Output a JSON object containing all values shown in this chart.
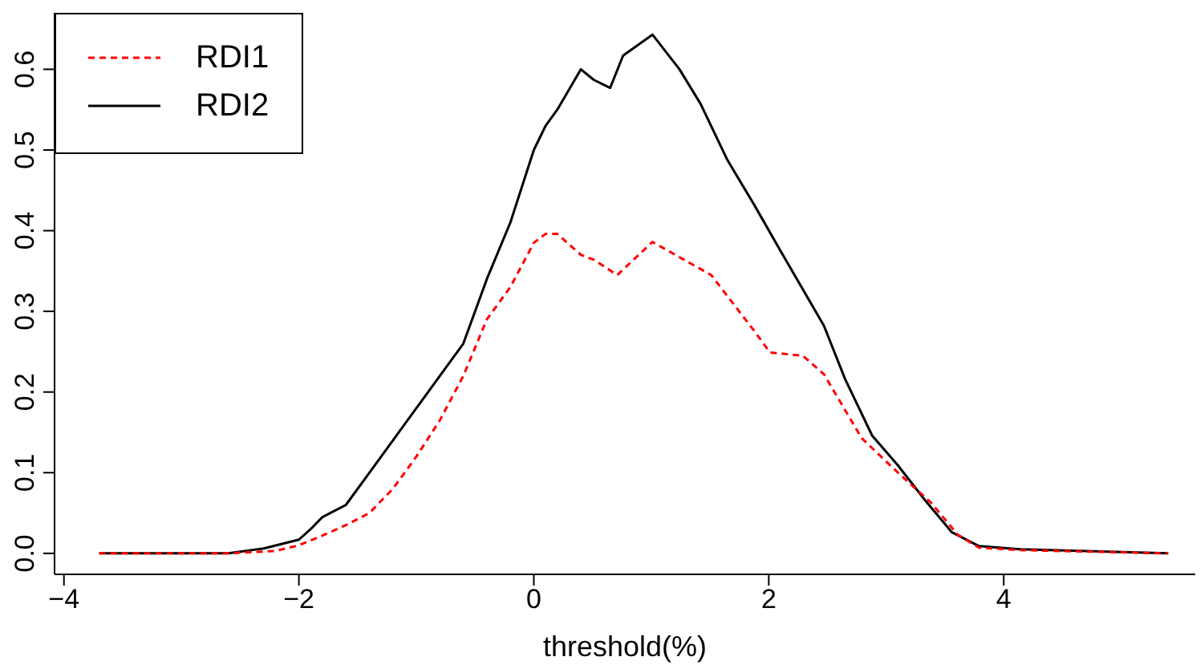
{
  "chart_data": {
    "type": "line",
    "xlabel": "threshold(%)",
    "xlim": [
      -4.08,
      5.63
    ],
    "ylim": [
      -0.026,
      0.67
    ],
    "xticks": [
      {
        "value": -4,
        "label": "−4"
      },
      {
        "value": -2,
        "label": "−2"
      },
      0,
      2,
      4
    ],
    "yticks": [
      {
        "value": 0,
        "label": "0.0"
      },
      {
        "value": 0.1,
        "label": "0.1"
      },
      {
        "value": 0.2,
        "label": "0.2"
      },
      {
        "value": 0.3,
        "label": "0.3"
      },
      {
        "value": 0.4,
        "label": "0.4"
      },
      {
        "value": 0.5,
        "label": "0.5"
      },
      {
        "value": 0.6,
        "label": "0.6"
      }
    ],
    "grid": false,
    "legend": "top left",
    "marker": "none",
    "series": [
      {
        "name": "RDI1",
        "color": "#ff0000",
        "line_style": "dashed",
        "x": [
          -3.7,
          -2.6,
          -2.2,
          -2.0,
          -1.8,
          -1.6,
          -1.4,
          -1.2,
          -1.0,
          -0.8,
          -0.6,
          -0.4,
          -0.2,
          0,
          0.1,
          0.2,
          0.4,
          0.51,
          0.71,
          1.01,
          1.51,
          1.88,
          2.01,
          2.29,
          2.47,
          2.79,
          3.1,
          3.38,
          3.61,
          3.79,
          4.15,
          5.4
        ],
        "values": [
          0,
          0,
          0.003,
          0.01,
          0.022,
          0.035,
          0.05,
          0.08,
          0.12,
          0.165,
          0.22,
          0.29,
          0.33,
          0.385,
          0.396,
          0.396,
          0.37,
          0.364,
          0.345,
          0.386,
          0.345,
          0.275,
          0.249,
          0.245,
          0.222,
          0.143,
          0.1,
          0.063,
          0.023,
          0.007,
          0.004,
          0
        ]
      },
      {
        "name": "RDI2",
        "color": "#000000",
        "line_style": "solid",
        "x": [
          -3.7,
          -2.6,
          -2.3,
          -2.0,
          -1.9,
          -1.8,
          -1.6,
          -1.4,
          -1.2,
          -1.0,
          -0.8,
          -0.6,
          -0.4,
          -0.2,
          0,
          0.1,
          0.2,
          0.4,
          0.51,
          0.65,
          0.76,
          1.01,
          1.24,
          1.42,
          1.65,
          1.88,
          2.1,
          2.47,
          2.65,
          2.88,
          3.1,
          3.33,
          3.56,
          3.79,
          4.15,
          5.4
        ],
        "values": [
          0,
          0,
          0.006,
          0.017,
          0.03,
          0.045,
          0.06,
          0.1,
          0.14,
          0.18,
          0.22,
          0.26,
          0.34,
          0.41,
          0.5,
          0.53,
          0.55,
          0.6,
          0.587,
          0.577,
          0.617,
          0.643,
          0.6,
          0.557,
          0.487,
          0.431,
          0.375,
          0.282,
          0.216,
          0.146,
          0.109,
          0.066,
          0.026,
          0.009,
          0.005,
          0
        ]
      }
    ]
  }
}
